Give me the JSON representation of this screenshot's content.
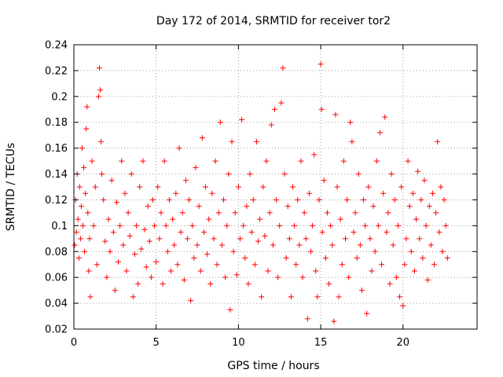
{
  "chart_data": {
    "type": "scatter",
    "title": "Day 172 of 2014, SRMTID for receiver tor2",
    "xlabel": "GPS time / hours",
    "ylabel": "SRMTID / TECUs",
    "xlim": [
      0,
      24.5
    ],
    "ylim": [
      0.02,
      0.24
    ],
    "xticks": [
      "0",
      "5",
      "10",
      "15",
      "20"
    ],
    "yticks": [
      "0.02",
      "0.04",
      "0.06",
      "0.08",
      "0.1",
      "0.12",
      "0.14",
      "0.16",
      "0.18",
      "0.2",
      "0.22",
      "0.24"
    ],
    "grid": true,
    "marker": "plus",
    "series_color": "#ff0000",
    "series": [
      {
        "points": [
          [
            0.05,
            0.085
          ],
          [
            0.1,
            0.12
          ],
          [
            0.15,
            0.095
          ],
          [
            0.2,
            0.14
          ],
          [
            0.25,
            0.105
          ],
          [
            0.3,
            0.075
          ],
          [
            0.35,
            0.13
          ],
          [
            0.4,
            0.09
          ],
          [
            0.45,
            0.115
          ],
          [
            0.5,
            0.16
          ],
          [
            0.55,
            0.1
          ],
          [
            0.6,
            0.145
          ],
          [
            0.65,
            0.08
          ],
          [
            0.7,
            0.125
          ],
          [
            0.75,
            0.175
          ],
          [
            0.8,
            0.192
          ],
          [
            0.85,
            0.11
          ],
          [
            0.9,
            0.065
          ],
          [
            0.95,
            0.09
          ],
          [
            1.0,
            0.045
          ],
          [
            1.1,
            0.15
          ],
          [
            1.2,
            0.1
          ],
          [
            1.3,
            0.13
          ],
          [
            1.4,
            0.07
          ],
          [
            1.5,
            0.2
          ],
          [
            1.55,
            0.222
          ],
          [
            1.6,
            0.205
          ],
          [
            1.65,
            0.165
          ],
          [
            1.7,
            0.14
          ],
          [
            1.8,
            0.12
          ],
          [
            1.9,
            0.088
          ],
          [
            2.0,
            0.06
          ],
          [
            2.1,
            0.105
          ],
          [
            2.2,
            0.08
          ],
          [
            2.3,
            0.135
          ],
          [
            2.4,
            0.095
          ],
          [
            2.5,
            0.05
          ],
          [
            2.6,
            0.118
          ],
          [
            2.7,
            0.072
          ],
          [
            2.8,
            0.1
          ],
          [
            2.9,
            0.15
          ],
          [
            3.0,
            0.085
          ],
          [
            3.1,
            0.125
          ],
          [
            3.2,
            0.065
          ],
          [
            3.3,
            0.11
          ],
          [
            3.4,
            0.092
          ],
          [
            3.5,
            0.14
          ],
          [
            3.6,
            0.045
          ],
          [
            3.7,
            0.078
          ],
          [
            3.8,
            0.1
          ],
          [
            3.9,
            0.055
          ],
          [
            4.0,
            0.13
          ],
          [
            4.1,
            0.082
          ],
          [
            4.2,
            0.15
          ],
          [
            4.3,
            0.097
          ],
          [
            4.4,
            0.068
          ],
          [
            4.5,
            0.115
          ],
          [
            4.6,
            0.088
          ],
          [
            4.7,
            0.06
          ],
          [
            4.8,
            0.12
          ],
          [
            4.9,
            0.1
          ],
          [
            5.0,
            0.072
          ],
          [
            5.1,
            0.13
          ],
          [
            5.2,
            0.09
          ],
          [
            5.3,
            0.11
          ],
          [
            5.4,
            0.055
          ],
          [
            5.5,
            0.15
          ],
          [
            5.6,
            0.1
          ],
          [
            5.7,
            0.08
          ],
          [
            5.8,
            0.12
          ],
          [
            5.9,
            0.065
          ],
          [
            6.0,
            0.105
          ],
          [
            6.1,
            0.085
          ],
          [
            6.2,
            0.125
          ],
          [
            6.3,
            0.07
          ],
          [
            6.4,
            0.16
          ],
          [
            6.5,
            0.095
          ],
          [
            6.6,
            0.11
          ],
          [
            6.7,
            0.058
          ],
          [
            6.8,
            0.135
          ],
          [
            6.9,
            0.09
          ],
          [
            7.0,
            0.12
          ],
          [
            7.1,
            0.042
          ],
          [
            7.2,
            0.1
          ],
          [
            7.3,
            0.075
          ],
          [
            7.4,
            0.145
          ],
          [
            7.5,
            0.085
          ],
          [
            7.6,
            0.115
          ],
          [
            7.7,
            0.065
          ],
          [
            7.8,
            0.168
          ],
          [
            7.9,
            0.095
          ],
          [
            8.0,
            0.13
          ],
          [
            8.1,
            0.078
          ],
          [
            8.2,
            0.105
          ],
          [
            8.3,
            0.055
          ],
          [
            8.4,
            0.125
          ],
          [
            8.5,
            0.09
          ],
          [
            8.6,
            0.15
          ],
          [
            8.7,
            0.07
          ],
          [
            8.8,
            0.11
          ],
          [
            8.9,
            0.18
          ],
          [
            9.0,
            0.085
          ],
          [
            9.1,
            0.12
          ],
          [
            9.2,
            0.06
          ],
          [
            9.3,
            0.1
          ],
          [
            9.4,
            0.14
          ],
          [
            9.5,
            0.035
          ],
          [
            9.6,
            0.165
          ],
          [
            9.7,
            0.08
          ],
          [
            9.8,
            0.11
          ],
          [
            9.9,
            0.062
          ],
          [
            10.0,
            0.13
          ],
          [
            10.1,
            0.09
          ],
          [
            10.2,
            0.182
          ],
          [
            10.3,
            0.1
          ],
          [
            10.4,
            0.075
          ],
          [
            10.5,
            0.115
          ],
          [
            10.6,
            0.055
          ],
          [
            10.7,
            0.14
          ],
          [
            10.8,
            0.095
          ],
          [
            10.9,
            0.12
          ],
          [
            11.0,
            0.07
          ],
          [
            11.1,
            0.165
          ],
          [
            11.2,
            0.088
          ],
          [
            11.3,
            0.105
          ],
          [
            11.4,
            0.045
          ],
          [
            11.5,
            0.13
          ],
          [
            11.6,
            0.092
          ],
          [
            11.7,
            0.15
          ],
          [
            11.8,
            0.065
          ],
          [
            11.9,
            0.11
          ],
          [
            12.0,
            0.178
          ],
          [
            12.1,
            0.085
          ],
          [
            12.2,
            0.19
          ],
          [
            12.3,
            0.12
          ],
          [
            12.4,
            0.06
          ],
          [
            12.5,
            0.1
          ],
          [
            12.6,
            0.195
          ],
          [
            12.7,
            0.222
          ],
          [
            12.8,
            0.14
          ],
          [
            12.9,
            0.075
          ],
          [
            13.0,
            0.115
          ],
          [
            13.1,
            0.09
          ],
          [
            13.2,
            0.045
          ],
          [
            13.3,
            0.13
          ],
          [
            13.4,
            0.1
          ],
          [
            13.5,
            0.07
          ],
          [
            13.6,
            0.12
          ],
          [
            13.7,
            0.085
          ],
          [
            13.8,
            0.15
          ],
          [
            13.9,
            0.06
          ],
          [
            14.0,
            0.11
          ],
          [
            14.1,
            0.09
          ],
          [
            14.2,
            0.028
          ],
          [
            14.3,
            0.125
          ],
          [
            14.4,
            0.08
          ],
          [
            14.5,
            0.1
          ],
          [
            14.6,
            0.155
          ],
          [
            14.7,
            0.065
          ],
          [
            14.8,
            0.045
          ],
          [
            14.9,
            0.12
          ],
          [
            15.0,
            0.225
          ],
          [
            15.05,
            0.19
          ],
          [
            15.1,
            0.095
          ],
          [
            15.2,
            0.135
          ],
          [
            15.3,
            0.075
          ],
          [
            15.4,
            0.11
          ],
          [
            15.5,
            0.055
          ],
          [
            15.6,
            0.1
          ],
          [
            15.7,
            0.085
          ],
          [
            15.8,
            0.026
          ],
          [
            15.9,
            0.186
          ],
          [
            16.0,
            0.13
          ],
          [
            16.1,
            0.045
          ],
          [
            16.2,
            0.105
          ],
          [
            16.3,
            0.07
          ],
          [
            16.4,
            0.15
          ],
          [
            16.5,
            0.09
          ],
          [
            16.6,
            0.12
          ],
          [
            16.7,
            0.06
          ],
          [
            16.8,
            0.18
          ],
          [
            16.9,
            0.165
          ],
          [
            17.0,
            0.095
          ],
          [
            17.1,
            0.11
          ],
          [
            17.2,
            0.075
          ],
          [
            17.3,
            0.14
          ],
          [
            17.4,
            0.085
          ],
          [
            17.5,
            0.05
          ],
          [
            17.6,
            0.12
          ],
          [
            17.7,
            0.1
          ],
          [
            17.8,
            0.032
          ],
          [
            17.9,
            0.13
          ],
          [
            18.0,
            0.09
          ],
          [
            18.1,
            0.065
          ],
          [
            18.2,
            0.115
          ],
          [
            18.3,
            0.08
          ],
          [
            18.4,
            0.15
          ],
          [
            18.5,
            0.1
          ],
          [
            18.6,
            0.172
          ],
          [
            18.7,
            0.07
          ],
          [
            18.8,
            0.125
          ],
          [
            18.9,
            0.184
          ],
          [
            19.0,
            0.095
          ],
          [
            19.1,
            0.11
          ],
          [
            19.2,
            0.055
          ],
          [
            19.3,
            0.14
          ],
          [
            19.4,
            0.085
          ],
          [
            19.5,
            0.12
          ],
          [
            19.6,
            0.06
          ],
          [
            19.7,
            0.1
          ],
          [
            19.8,
            0.045
          ],
          [
            19.9,
            0.13
          ],
          [
            20.0,
            0.038
          ],
          [
            20.1,
            0.07
          ],
          [
            20.2,
            0.09
          ],
          [
            20.3,
            0.15
          ],
          [
            20.4,
            0.115
          ],
          [
            20.5,
            0.08
          ],
          [
            20.6,
            0.125
          ],
          [
            20.7,
            0.065
          ],
          [
            20.8,
            0.105
          ],
          [
            20.9,
            0.142
          ],
          [
            21.0,
            0.09
          ],
          [
            21.1,
            0.12
          ],
          [
            21.2,
            0.075
          ],
          [
            21.3,
            0.135
          ],
          [
            21.4,
            0.1
          ],
          [
            21.5,
            0.058
          ],
          [
            21.6,
            0.115
          ],
          [
            21.7,
            0.085
          ],
          [
            21.8,
            0.125
          ],
          [
            21.9,
            0.07
          ],
          [
            22.0,
            0.11
          ],
          [
            22.1,
            0.165
          ],
          [
            22.2,
            0.095
          ],
          [
            22.3,
            0.13
          ],
          [
            22.4,
            0.08
          ],
          [
            22.5,
            0.12
          ],
          [
            22.6,
            0.1
          ],
          [
            22.7,
            0.075
          ]
        ]
      }
    ]
  }
}
